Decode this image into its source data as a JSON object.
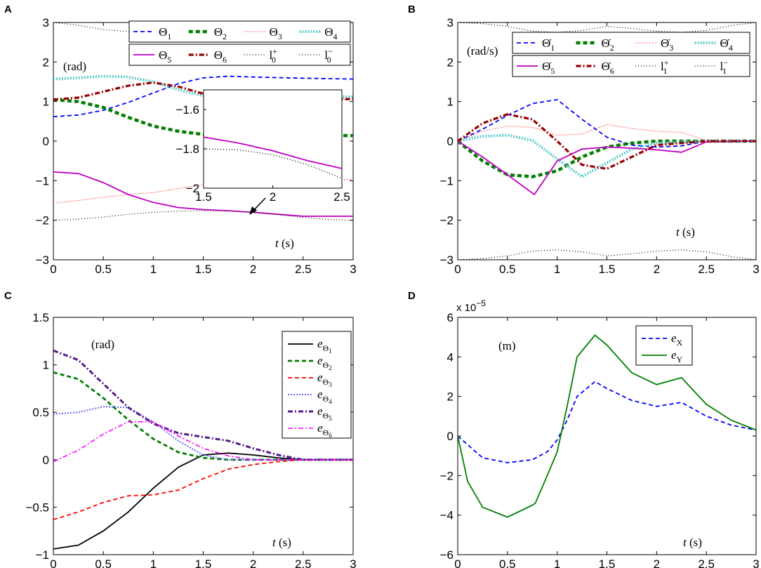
{
  "chart_data": [
    {
      "panel": "A",
      "type": "line",
      "unit_label": "(rad)",
      "xlabel_var": "t",
      "xlabel_unit": "(s)",
      "xlim": [
        0,
        3
      ],
      "ylim": [
        -3,
        3
      ],
      "xticks": [
        "0",
        "0.5",
        "1",
        "1.5",
        "2",
        "2.5",
        "3"
      ],
      "yticks": [
        "-3",
        "-2",
        "-1",
        "0",
        "1",
        "2",
        "3"
      ],
      "legend_row1": [
        {
          "sym": "Θ",
          "sub": "1",
          "color": "#0000ff",
          "dash": "6,4",
          "width": 1.8
        },
        {
          "sym": "Θ",
          "sub": "2",
          "color": "#007f00",
          "dash": "6,4",
          "width": 4.5
        },
        {
          "sym": "Θ",
          "sub": "3",
          "color": "#ff8080",
          "dash": "2,2",
          "width": 1.3
        },
        {
          "sym": "Θ",
          "sub": "4",
          "color": "#66cccc",
          "dash": "2,2",
          "width": 4.0
        }
      ],
      "legend_row2": [
        {
          "sym": "Θ",
          "sub": "5",
          "color": "#bf00bf",
          "dash": "",
          "width": 1.8
        },
        {
          "sym": "Θ",
          "sub": "6",
          "color": "#990000",
          "dash": "7,3,2,3",
          "width": 3.2
        },
        {
          "sym": "l",
          "sub": "0",
          "sup": "+",
          "color": "#000000",
          "dash": "1,3",
          "width": 1.2
        },
        {
          "sym": "l",
          "sub": "0",
          "sup": "−",
          "color": "#000000",
          "dash": "1,3",
          "width": 1.2
        }
      ],
      "series": [
        {
          "name": "Θ1",
          "x": [
            0,
            0.25,
            0.5,
            0.75,
            1.0,
            1.25,
            1.5,
            1.75,
            2.0,
            2.5,
            3.0
          ],
          "y": [
            0.62,
            0.66,
            0.78,
            0.98,
            1.22,
            1.45,
            1.6,
            1.64,
            1.62,
            1.59,
            1.57
          ]
        },
        {
          "name": "Θ2",
          "x": [
            0,
            0.25,
            0.5,
            0.75,
            1.0,
            1.25,
            1.5,
            2.0,
            2.5,
            3.0
          ],
          "y": [
            1.05,
            1.0,
            0.85,
            0.6,
            0.38,
            0.25,
            0.17,
            0.15,
            0.14,
            0.14
          ]
        },
        {
          "name": "Θ3",
          "x": [
            0,
            0.25,
            0.5,
            0.75,
            1.0,
            1.25,
            1.5,
            2.0,
            2.5,
            3.0
          ],
          "y": [
            -1.57,
            -1.5,
            -1.42,
            -1.35,
            -1.3,
            -1.2,
            -1.1,
            -1.0,
            -0.98,
            -0.97
          ]
        },
        {
          "name": "Θ4",
          "x": [
            0,
            0.25,
            0.5,
            0.75,
            1.0,
            1.25,
            1.5,
            2.0,
            2.5,
            3.0
          ],
          "y": [
            1.57,
            1.6,
            1.64,
            1.62,
            1.5,
            1.3,
            1.15,
            1.12,
            1.12,
            1.12
          ]
        },
        {
          "name": "Θ5",
          "x": [
            0,
            0.25,
            0.5,
            0.75,
            1.0,
            1.25,
            1.5,
            1.75,
            2.0,
            2.25,
            2.5,
            3.0
          ],
          "y": [
            -0.78,
            -0.82,
            -1.05,
            -1.35,
            -1.55,
            -1.68,
            -1.73,
            -1.76,
            -1.8,
            -1.85,
            -1.9,
            -1.9
          ]
        },
        {
          "name": "Θ6",
          "x": [
            0,
            0.25,
            0.5,
            0.75,
            1.0,
            1.25,
            1.5,
            2.0,
            2.5,
            3.0
          ],
          "y": [
            1.05,
            1.1,
            1.25,
            1.4,
            1.48,
            1.38,
            1.2,
            1.1,
            1.07,
            1.06
          ]
        },
        {
          "name": "l0+",
          "x": [
            0,
            0.25,
            0.5,
            0.75,
            1.0,
            1.25,
            1.5,
            1.75,
            2.0,
            2.25,
            2.5,
            2.75,
            3.0
          ],
          "y": [
            3.0,
            2.93,
            2.82,
            2.77,
            2.84,
            2.94,
            3.0,
            2.94,
            2.84,
            2.77,
            2.82,
            2.93,
            3.0
          ]
        },
        {
          "name": "l0-",
          "x": [
            0,
            0.25,
            0.5,
            0.75,
            1.0,
            1.25,
            1.5,
            1.75,
            2.0,
            2.25,
            2.5,
            2.75,
            3.0
          ],
          "y": [
            -2.0,
            -1.97,
            -1.92,
            -1.85,
            -1.8,
            -1.77,
            -1.76,
            -1.77,
            -1.8,
            -1.86,
            -1.93,
            -1.98,
            -2.0
          ]
        }
      ],
      "inset": {
        "xlim": [
          1.5,
          2.5
        ],
        "ylim": [
          -2.0,
          -1.5
        ],
        "xticks": [
          "1.5",
          "2",
          "2.5"
        ],
        "yticks": [
          "-2",
          "-1.8",
          "-1.6"
        ],
        "series": [
          {
            "name": "Θ5",
            "x": [
              1.5,
              1.75,
              2.0,
              2.25,
              2.5
            ],
            "y": [
              -1.74,
              -1.77,
              -1.81,
              -1.86,
              -1.9
            ]
          },
          {
            "name": "l0-",
            "x": [
              1.5,
              1.75,
              2.0,
              2.25,
              2.5
            ],
            "y": [
              -1.8,
              -1.805,
              -1.83,
              -1.88,
              -1.95
            ]
          }
        ]
      }
    },
    {
      "panel": "B",
      "type": "line",
      "unit_label": "(rad/s)",
      "xlabel_var": "t",
      "xlabel_unit": "(s)",
      "xlim": [
        0,
        3
      ],
      "ylim": [
        -3,
        3
      ],
      "xticks": [
        "0",
        "0.5",
        "1",
        "1.5",
        "2",
        "2.5",
        "3"
      ],
      "yticks": [
        "-3",
        "-2",
        "-1",
        "0",
        "1",
        "2",
        "3"
      ],
      "legend_row1": [
        {
          "sym": "Θ̇",
          "sub": "1",
          "color": "#0000ff",
          "dash": "6,4",
          "width": 1.8
        },
        {
          "sym": "Θ̇",
          "sub": "2",
          "color": "#007f00",
          "dash": "6,4",
          "width": 4.5
        },
        {
          "sym": "Θ̇",
          "sub": "3",
          "color": "#ff8080",
          "dash": "2,2",
          "width": 1.3
        },
        {
          "sym": "Θ̇",
          "sub": "4",
          "color": "#66cccc",
          "dash": "2,2",
          "width": 4.0
        }
      ],
      "legend_row2": [
        {
          "sym": "Θ̇",
          "sub": "5",
          "color": "#bf00bf",
          "dash": "",
          "width": 1.8
        },
        {
          "sym": "Θ̇",
          "sub": "6",
          "color": "#990000",
          "dash": "7,3,2,3",
          "width": 3.2
        },
        {
          "sym": "l",
          "sub": "1",
          "sup": "+",
          "color": "#000000",
          "dash": "1,3",
          "width": 1.2
        },
        {
          "sym": "l",
          "sub": "1",
          "sup": "−",
          "color": "#000000",
          "dash": "1,3",
          "width": 1.2
        }
      ],
      "series": [
        {
          "name": "dΘ1",
          "x": [
            0,
            0.25,
            0.5,
            0.75,
            1.0,
            1.25,
            1.5,
            1.75,
            2.0,
            2.25,
            2.5,
            3.0
          ],
          "y": [
            0.0,
            0.3,
            0.65,
            0.95,
            1.05,
            0.55,
            0.1,
            -0.1,
            -0.15,
            -0.12,
            0.0,
            0.0
          ]
        },
        {
          "name": "dΘ2",
          "x": [
            0,
            0.25,
            0.5,
            0.75,
            1.0,
            1.25,
            1.5,
            1.75,
            2.0,
            2.5,
            3.0
          ],
          "y": [
            0.0,
            -0.5,
            -0.85,
            -0.9,
            -0.75,
            -0.4,
            -0.15,
            -0.05,
            0.0,
            0.0,
            0.0
          ]
        },
        {
          "name": "dΘ3",
          "x": [
            0,
            0.25,
            0.5,
            0.75,
            1.0,
            1.25,
            1.5,
            1.75,
            2.0,
            2.25,
            2.5,
            3.0
          ],
          "y": [
            0.0,
            0.25,
            0.38,
            0.35,
            0.15,
            0.18,
            0.42,
            0.32,
            0.25,
            0.22,
            0.02,
            0.0
          ]
        },
        {
          "name": "dΘ4",
          "x": [
            0,
            0.25,
            0.5,
            0.75,
            1.0,
            1.25,
            1.5,
            1.75,
            2.0,
            2.5,
            3.0
          ],
          "y": [
            0.0,
            0.12,
            0.15,
            0.02,
            -0.45,
            -0.9,
            -0.55,
            -0.2,
            -0.05,
            0.0,
            0.0
          ]
        },
        {
          "name": "dΘ5",
          "x": [
            0,
            0.25,
            0.5,
            0.77,
            1.0,
            1.25,
            1.5,
            1.75,
            2.0,
            2.25,
            2.5,
            3.0
          ],
          "y": [
            0.0,
            -0.4,
            -0.85,
            -1.35,
            -0.5,
            -0.2,
            -0.15,
            -0.18,
            -0.22,
            -0.28,
            -0.02,
            0.0
          ]
        },
        {
          "name": "dΘ6",
          "x": [
            0,
            0.25,
            0.5,
            0.75,
            1.0,
            1.25,
            1.5,
            1.75,
            2.0,
            2.5,
            3.0
          ],
          "y": [
            0.0,
            0.45,
            0.68,
            0.55,
            0.0,
            -0.6,
            -0.7,
            -0.4,
            -0.1,
            0.0,
            0.0
          ]
        },
        {
          "name": "l1+",
          "x": [
            0,
            0.25,
            0.5,
            0.75,
            1.0,
            1.25,
            1.5,
            1.75,
            2.0,
            2.25,
            2.5,
            2.75,
            3.0
          ],
          "y": [
            3.0,
            2.97,
            2.9,
            2.78,
            2.75,
            2.8,
            2.9,
            2.85,
            2.78,
            2.75,
            2.8,
            2.92,
            3.0
          ]
        },
        {
          "name": "l1-",
          "x": [
            0,
            0.25,
            0.5,
            0.75,
            1.0,
            1.25,
            1.5,
            1.75,
            2.0,
            2.25,
            2.5,
            2.75,
            3.0
          ],
          "y": [
            -3.0,
            -2.97,
            -2.9,
            -2.78,
            -2.75,
            -2.8,
            -2.9,
            -2.85,
            -2.78,
            -2.75,
            -2.8,
            -2.92,
            -3.0
          ]
        }
      ]
    },
    {
      "panel": "C",
      "type": "line",
      "unit_label": "(rad)",
      "xlabel_var": "t",
      "xlabel_unit": "(s)",
      "xlim": [
        0,
        3
      ],
      "ylim": [
        -1,
        1.5
      ],
      "xticks": [
        "0",
        "0.5",
        "1",
        "1.5",
        "2",
        "2.5",
        "3"
      ],
      "yticks": [
        "-1",
        "-0.5",
        "0",
        "0.5",
        "1",
        "1.5"
      ],
      "legend": [
        {
          "sym": "e",
          "sub": "Θ",
          "subsub": "1",
          "color": "#000000",
          "dash": "",
          "width": 1.8
        },
        {
          "sym": "e",
          "sub": "Θ",
          "subsub": "2",
          "color": "#007f00",
          "dash": "6,4",
          "width": 2.8
        },
        {
          "sym": "e",
          "sub": "Θ",
          "subsub": "3",
          "color": "#ff0000",
          "dash": "6,4",
          "width": 1.8
        },
        {
          "sym": "e",
          "sub": "Θ",
          "subsub": "4",
          "color": "#6666ff",
          "dash": "2,2",
          "width": 2.0
        },
        {
          "sym": "e",
          "sub": "Θ",
          "subsub": "5",
          "color": "#551a8b",
          "dash": "7,3,2,3",
          "width": 3.0
        },
        {
          "sym": "e",
          "sub": "Θ",
          "subsub": "6",
          "color": "#ff00ff",
          "dash": "7,3,2,3",
          "width": 1.6
        }
      ],
      "series": [
        {
          "name": "eΘ1",
          "x": [
            0,
            0.25,
            0.5,
            0.75,
            1.0,
            1.25,
            1.5,
            1.75,
            2.0,
            2.25,
            2.5,
            3.0
          ],
          "y": [
            -0.94,
            -0.9,
            -0.75,
            -0.55,
            -0.3,
            -0.08,
            0.05,
            0.07,
            0.05,
            0.02,
            0.0,
            0.0
          ]
        },
        {
          "name": "eΘ2",
          "x": [
            0,
            0.25,
            0.5,
            0.75,
            1.0,
            1.25,
            1.5,
            1.75,
            2.0,
            2.5,
            3.0
          ],
          "y": [
            0.92,
            0.85,
            0.65,
            0.42,
            0.22,
            0.08,
            0.02,
            0.0,
            0.0,
            0.0,
            0.0
          ]
        },
        {
          "name": "eΘ3",
          "x": [
            0,
            0.25,
            0.5,
            0.75,
            1.0,
            1.25,
            1.5,
            1.75,
            2.0,
            2.25,
            2.5,
            3.0
          ],
          "y": [
            -0.63,
            -0.55,
            -0.45,
            -0.38,
            -0.37,
            -0.32,
            -0.2,
            -0.1,
            -0.05,
            -0.02,
            0.0,
            0.0
          ]
        },
        {
          "name": "eΘ4",
          "x": [
            0,
            0.25,
            0.5,
            0.75,
            1.0,
            1.25,
            1.5,
            1.75,
            2.0,
            2.5,
            3.0
          ],
          "y": [
            0.48,
            0.5,
            0.56,
            0.55,
            0.4,
            0.2,
            0.05,
            0.0,
            0.0,
            0.0,
            0.0
          ]
        },
        {
          "name": "eΘ5",
          "x": [
            0,
            0.25,
            0.5,
            0.75,
            1.0,
            1.25,
            1.5,
            1.75,
            2.0,
            2.25,
            2.5,
            3.0
          ],
          "y": [
            1.15,
            1.05,
            0.8,
            0.55,
            0.38,
            0.28,
            0.24,
            0.2,
            0.12,
            0.05,
            0.0,
            0.0
          ]
        },
        {
          "name": "eΘ6",
          "x": [
            0,
            0.25,
            0.5,
            0.75,
            1.0,
            1.25,
            1.5,
            1.75,
            2.0,
            2.5,
            3.0
          ],
          "y": [
            -0.02,
            0.1,
            0.27,
            0.4,
            0.4,
            0.25,
            0.12,
            0.04,
            0.0,
            0.0,
            0.0
          ]
        }
      ]
    },
    {
      "panel": "D",
      "type": "line",
      "unit_label": "(m)",
      "scale_prefix": "x 10",
      "scale_exp": "−5",
      "xlabel_var": "t",
      "xlabel_unit": "(s)",
      "xlim": [
        0,
        3
      ],
      "ylim": [
        -6,
        6
      ],
      "xticks": [
        "0",
        "0.5",
        "1",
        "1.5",
        "2",
        "2.5",
        "3"
      ],
      "yticks": [
        "-6",
        "-4",
        "-2",
        "0",
        "2",
        "4",
        "6"
      ],
      "legend": [
        {
          "sym": "e",
          "sub": "X",
          "color": "#0000ff",
          "dash": "6,4",
          "width": 1.8
        },
        {
          "sym": "e",
          "sub": "Y",
          "color": "#007f00",
          "dash": "",
          "width": 1.8
        }
      ],
      "series": [
        {
          "name": "eX",
          "x": [
            0,
            0.25,
            0.5,
            0.75,
            0.9,
            1.0,
            1.1,
            1.2,
            1.38,
            1.5,
            1.75,
            2.0,
            2.25,
            2.5,
            2.75,
            3.0
          ],
          "y": [
            0.0,
            -1.1,
            -1.35,
            -1.2,
            -0.8,
            -0.2,
            0.8,
            2.0,
            2.75,
            2.4,
            1.8,
            1.5,
            1.7,
            1.0,
            0.55,
            0.3
          ]
        },
        {
          "name": "eY",
          "x": [
            0,
            0.1,
            0.25,
            0.5,
            0.75,
            0.78,
            0.9,
            1.0,
            1.1,
            1.2,
            1.38,
            1.5,
            1.75,
            2.0,
            2.25,
            2.5,
            2.75,
            3.0
          ],
          "y": [
            0.0,
            -2.3,
            -3.6,
            -4.1,
            -3.5,
            -3.4,
            -2.0,
            -0.8,
            1.5,
            4.0,
            5.1,
            4.6,
            3.2,
            2.6,
            2.95,
            1.6,
            0.8,
            0.3
          ]
        }
      ]
    }
  ]
}
